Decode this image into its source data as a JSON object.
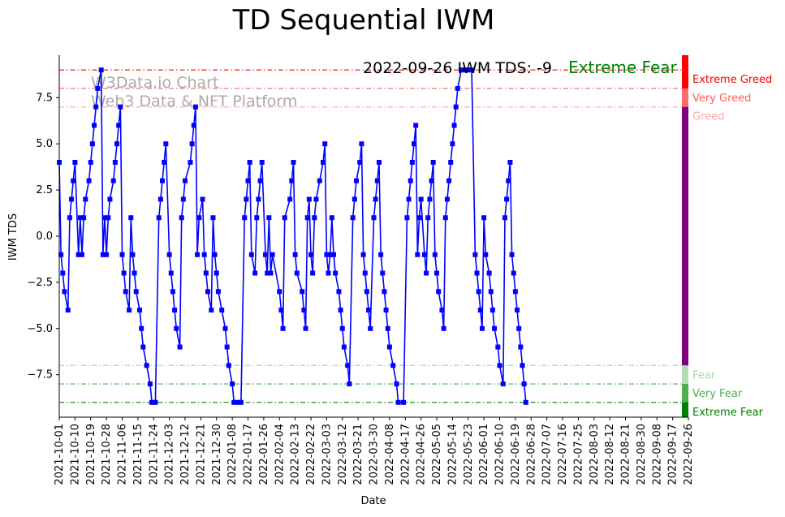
{
  "chart_data": {
    "type": "line",
    "title": "TD Sequential IWM",
    "xlabel": "Date",
    "ylabel": "IWM TDS",
    "xlim": [
      "2021-10-01",
      "2022-09-26"
    ],
    "ylim": [
      -9.8,
      9.8
    ],
    "yticks": [
      -7.5,
      -5.0,
      -2.5,
      0.0,
      2.5,
      5.0,
      7.5
    ],
    "ytick_labels": [
      "−7.5",
      "−5.0",
      "−2.5",
      "0.0",
      "2.5",
      "5.0",
      "7.5"
    ],
    "xticks": [
      "2021-10-01",
      "2021-10-10",
      "2021-10-19",
      "2021-10-28",
      "2021-11-06",
      "2021-11-15",
      "2021-11-24",
      "2021-12-03",
      "2021-12-12",
      "2021-12-21",
      "2021-12-30",
      "2022-01-08",
      "2022-01-17",
      "2022-01-26",
      "2022-02-04",
      "2022-02-13",
      "2022-02-22",
      "2022-03-03",
      "2022-03-12",
      "2022-03-21",
      "2022-03-30",
      "2022-04-08",
      "2022-04-17",
      "2022-04-26",
      "2022-05-05",
      "2022-05-14",
      "2022-05-23",
      "2022-06-01",
      "2022-06-10",
      "2022-06-19",
      "2022-06-28",
      "2022-07-07",
      "2022-07-16",
      "2022-07-25",
      "2022-08-03",
      "2022-08-12",
      "2022-08-21",
      "2022-08-30",
      "2022-09-08",
      "2022-09-17",
      "2022-09-26"
    ],
    "grid": false,
    "series": [
      {
        "color": "#0000ff",
        "marker": "square",
        "points": [
          [
            "2021-10-01",
            4
          ],
          [
            "2021-10-02",
            -1
          ],
          [
            "2021-10-03",
            -2
          ],
          [
            "2021-10-04",
            -3
          ],
          [
            "2021-10-06",
            -4
          ],
          [
            "2021-10-07",
            1
          ],
          [
            "2021-10-08",
            2
          ],
          [
            "2021-10-09",
            3
          ],
          [
            "2021-10-10",
            4
          ],
          [
            "2021-10-12",
            -1
          ],
          [
            "2021-10-13",
            1
          ],
          [
            "2021-10-14",
            -1
          ],
          [
            "2021-10-15",
            1
          ],
          [
            "2021-10-16",
            2
          ],
          [
            "2021-10-18",
            3
          ],
          [
            "2021-10-19",
            4
          ],
          [
            "2021-10-20",
            5
          ],
          [
            "2021-10-21",
            6
          ],
          [
            "2021-10-22",
            7
          ],
          [
            "2021-10-23",
            8
          ],
          [
            "2021-10-25",
            9
          ],
          [
            "2021-10-26",
            -1
          ],
          [
            "2021-10-27",
            1
          ],
          [
            "2021-10-28",
            -1
          ],
          [
            "2021-10-29",
            1
          ],
          [
            "2021-10-30",
            2
          ],
          [
            "2021-11-01",
            3
          ],
          [
            "2021-11-02",
            4
          ],
          [
            "2021-11-03",
            5
          ],
          [
            "2021-11-04",
            6
          ],
          [
            "2021-11-05",
            7
          ],
          [
            "2021-11-06",
            -1
          ],
          [
            "2021-11-07",
            -2
          ],
          [
            "2021-11-08",
            -3
          ],
          [
            "2021-11-10",
            -4
          ],
          [
            "2021-11-11",
            1
          ],
          [
            "2021-11-12",
            -1
          ],
          [
            "2021-11-13",
            -2
          ],
          [
            "2021-11-14",
            -3
          ],
          [
            "2021-11-16",
            -4
          ],
          [
            "2021-11-17",
            -5
          ],
          [
            "2021-11-18",
            -6
          ],
          [
            "2021-11-20",
            -7
          ],
          [
            "2021-11-22",
            -8
          ],
          [
            "2021-11-23",
            -9
          ],
          [
            "2021-11-25",
            -9
          ],
          [
            "2021-11-27",
            1
          ],
          [
            "2021-11-28",
            2
          ],
          [
            "2021-11-29",
            3
          ],
          [
            "2021-11-30",
            4
          ],
          [
            "2021-12-01",
            5
          ],
          [
            "2021-12-03",
            -1
          ],
          [
            "2021-12-04",
            -2
          ],
          [
            "2021-12-05",
            -3
          ],
          [
            "2021-12-06",
            -4
          ],
          [
            "2021-12-07",
            -5
          ],
          [
            "2021-12-09",
            -6
          ],
          [
            "2021-12-10",
            1
          ],
          [
            "2021-12-11",
            2
          ],
          [
            "2021-12-12",
            3
          ],
          [
            "2021-12-15",
            4
          ],
          [
            "2021-12-16",
            5
          ],
          [
            "2021-12-17",
            6
          ],
          [
            "2021-12-18",
            7
          ],
          [
            "2021-12-19",
            -1
          ],
          [
            "2021-12-20",
            1
          ],
          [
            "2021-12-22",
            2
          ],
          [
            "2021-12-23",
            -1
          ],
          [
            "2021-12-24",
            -2
          ],
          [
            "2021-12-25",
            -3
          ],
          [
            "2021-12-27",
            -4
          ],
          [
            "2021-12-28",
            1
          ],
          [
            "2021-12-29",
            -1
          ],
          [
            "2021-12-30",
            -2
          ],
          [
            "2021-12-31",
            -3
          ],
          [
            "2022-01-02",
            -4
          ],
          [
            "2022-01-04",
            -5
          ],
          [
            "2022-01-05",
            -6
          ],
          [
            "2022-01-06",
            -7
          ],
          [
            "2022-01-08",
            -8
          ],
          [
            "2022-01-09",
            -9
          ],
          [
            "2022-01-11",
            -9
          ],
          [
            "2022-01-13",
            -9
          ],
          [
            "2022-01-15",
            1
          ],
          [
            "2022-01-16",
            2
          ],
          [
            "2022-01-17",
            3
          ],
          [
            "2022-01-18",
            4
          ],
          [
            "2022-01-19",
            -1
          ],
          [
            "2022-01-21",
            -2
          ],
          [
            "2022-01-22",
            1
          ],
          [
            "2022-01-23",
            2
          ],
          [
            "2022-01-24",
            3
          ],
          [
            "2022-01-25",
            4
          ],
          [
            "2022-01-27",
            -1
          ],
          [
            "2022-01-28",
            -2
          ],
          [
            "2022-01-29",
            1
          ],
          [
            "2022-01-30",
            -2
          ],
          [
            "2022-01-31",
            -1
          ],
          [
            "2022-02-04",
            -3
          ],
          [
            "2022-02-05",
            -4
          ],
          [
            "2022-02-06",
            -5
          ],
          [
            "2022-02-07",
            1
          ],
          [
            "2022-02-10",
            2
          ],
          [
            "2022-02-11",
            3
          ],
          [
            "2022-02-12",
            4
          ],
          [
            "2022-02-13",
            -1
          ],
          [
            "2022-02-14",
            -2
          ],
          [
            "2022-02-17",
            -3
          ],
          [
            "2022-02-18",
            -4
          ],
          [
            "2022-02-19",
            -5
          ],
          [
            "2022-02-20",
            1
          ],
          [
            "2022-02-21",
            2
          ],
          [
            "2022-02-22",
            -1
          ],
          [
            "2022-02-23",
            -2
          ],
          [
            "2022-02-24",
            1
          ],
          [
            "2022-02-25",
            2
          ],
          [
            "2022-02-27",
            3
          ],
          [
            "2022-03-01",
            4
          ],
          [
            "2022-03-02",
            5
          ],
          [
            "2022-03-03",
            -1
          ],
          [
            "2022-03-04",
            -2
          ],
          [
            "2022-03-05",
            -1
          ],
          [
            "2022-03-06",
            1
          ],
          [
            "2022-03-07",
            -1
          ],
          [
            "2022-03-08",
            -2
          ],
          [
            "2022-03-10",
            -3
          ],
          [
            "2022-03-11",
            -4
          ],
          [
            "2022-03-12",
            -5
          ],
          [
            "2022-03-13",
            -6
          ],
          [
            "2022-03-15",
            -7
          ],
          [
            "2022-03-16",
            -8
          ],
          [
            "2022-03-18",
            1
          ],
          [
            "2022-03-19",
            2
          ],
          [
            "2022-03-20",
            3
          ],
          [
            "2022-03-22",
            4
          ],
          [
            "2022-03-23",
            5
          ],
          [
            "2022-03-24",
            -1
          ],
          [
            "2022-03-25",
            -2
          ],
          [
            "2022-03-26",
            -3
          ],
          [
            "2022-03-27",
            -4
          ],
          [
            "2022-03-28",
            -5
          ],
          [
            "2022-03-30",
            1
          ],
          [
            "2022-03-31",
            2
          ],
          [
            "2022-04-01",
            3
          ],
          [
            "2022-04-02",
            4
          ],
          [
            "2022-04-03",
            -1
          ],
          [
            "2022-04-04",
            -2
          ],
          [
            "2022-04-05",
            -3
          ],
          [
            "2022-04-06",
            -4
          ],
          [
            "2022-04-07",
            -5
          ],
          [
            "2022-04-08",
            -6
          ],
          [
            "2022-04-10",
            -7
          ],
          [
            "2022-04-12",
            -8
          ],
          [
            "2022-04-13",
            -9
          ],
          [
            "2022-04-16",
            -9
          ],
          [
            "2022-04-18",
            1
          ],
          [
            "2022-04-19",
            2
          ],
          [
            "2022-04-20",
            3
          ],
          [
            "2022-04-21",
            4
          ],
          [
            "2022-04-22",
            5
          ],
          [
            "2022-04-23",
            6
          ],
          [
            "2022-04-24",
            -1
          ],
          [
            "2022-04-25",
            1
          ],
          [
            "2022-04-26",
            2
          ],
          [
            "2022-04-28",
            -1
          ],
          [
            "2022-04-29",
            -2
          ],
          [
            "2022-04-30",
            1
          ],
          [
            "2022-05-01",
            2
          ],
          [
            "2022-05-02",
            3
          ],
          [
            "2022-05-03",
            4
          ],
          [
            "2022-05-04",
            -1
          ],
          [
            "2022-05-05",
            -2
          ],
          [
            "2022-05-06",
            -3
          ],
          [
            "2022-05-08",
            -4
          ],
          [
            "2022-05-09",
            -5
          ],
          [
            "2022-05-10",
            1
          ],
          [
            "2022-05-11",
            2
          ],
          [
            "2022-05-12",
            3
          ],
          [
            "2022-05-13",
            4
          ],
          [
            "2022-05-14",
            5
          ],
          [
            "2022-05-15",
            6
          ],
          [
            "2022-05-16",
            7
          ],
          [
            "2022-05-17",
            8
          ],
          [
            "2022-05-19",
            9
          ],
          [
            "2022-05-21",
            9
          ],
          [
            "2022-05-23",
            9
          ],
          [
            "2022-05-25",
            9
          ],
          [
            "2022-05-27",
            -1
          ],
          [
            "2022-05-28",
            -2
          ],
          [
            "2022-05-29",
            -3
          ],
          [
            "2022-05-30",
            -4
          ],
          [
            "2022-05-31",
            -5
          ],
          [
            "2022-06-01",
            1
          ],
          [
            "2022-06-02",
            -1
          ],
          [
            "2022-06-04",
            -2
          ],
          [
            "2022-06-05",
            -3
          ],
          [
            "2022-06-06",
            -4
          ],
          [
            "2022-06-07",
            -5
          ],
          [
            "2022-06-09",
            -6
          ],
          [
            "2022-06-10",
            -7
          ],
          [
            "2022-06-12",
            -8
          ],
          [
            "2022-06-13",
            1
          ],
          [
            "2022-06-14",
            2
          ],
          [
            "2022-06-15",
            3
          ],
          [
            "2022-06-16",
            4
          ],
          [
            "2022-06-17",
            -1
          ],
          [
            "2022-06-18",
            -2
          ],
          [
            "2022-06-19",
            -3
          ],
          [
            "2022-06-20",
            -4
          ],
          [
            "2022-06-21",
            -5
          ],
          [
            "2022-06-22",
            -6
          ],
          [
            "2022-06-23",
            -7
          ],
          [
            "2022-06-24",
            -8
          ],
          [
            "2022-06-25",
            -9
          ]
        ]
      }
    ],
    "bands": [
      {
        "label": "Extreme Greed",
        "value": 9,
        "color": "#ff0000"
      },
      {
        "label": "Very Greed",
        "value": 8,
        "color": "#ff5c5c"
      },
      {
        "label": "Greed",
        "value": 7,
        "color": "#ffaaaa"
      },
      {
        "label": "Fear",
        "value": -7,
        "color": "#a7d9a7"
      },
      {
        "label": "Very Fear",
        "value": -8,
        "color": "#4fae4f"
      },
      {
        "label": "Extreme Fear",
        "value": -9,
        "color": "#008000"
      }
    ],
    "annotation": {
      "text": "2022-09-26 IWM TDS: -9",
      "status": "Extreme Fear",
      "status_color": "#008000"
    },
    "watermark": [
      "W3Data.io Chart",
      "Web3 Data & NFT Platform"
    ]
  }
}
